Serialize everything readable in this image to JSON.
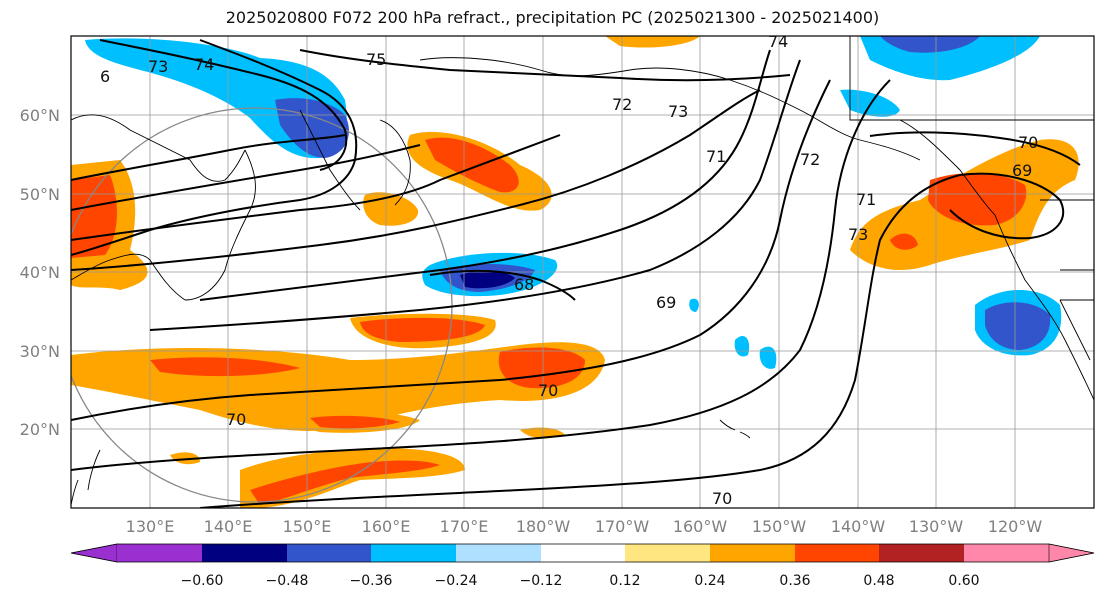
{
  "title": "2025020800 F072 200 hPa refract., precipitation PC (2025021300 - 2025021400)",
  "latitude_labels": [
    "60°N",
    "50°N",
    "40°N",
    "30°N",
    "20°N"
  ],
  "longitude_labels": [
    "130°E",
    "140°E",
    "150°E",
    "160°E",
    "170°E",
    "180°W",
    "170°W",
    "160°W",
    "150°W",
    "140°W",
    "130°W",
    "120°W"
  ],
  "contour_labels": [
    "75",
    "74",
    "74",
    "73",
    "73",
    "72",
    "71",
    "72",
    "71",
    "73",
    "70",
    "69",
    "68",
    "69",
    "70",
    "70",
    "70",
    "6"
  ],
  "colorbar": {
    "tick_labels": [
      "−0.60",
      "−0.48",
      "−0.36",
      "−0.24",
      "−0.12",
      "0.12",
      "0.24",
      "0.36",
      "0.48",
      "0.60"
    ],
    "colors": [
      "#9b30d0",
      "#000080",
      "#3355cc",
      "#00bfff",
      "#b0e0ff",
      "#ffffff",
      "#ffe680",
      "#ffa500",
      "#ff4500",
      "#b22222",
      "#ff88aa"
    ]
  },
  "colors": {
    "contour": "#000000",
    "coastline": "#000000",
    "grid": "#999999",
    "circle": "#888888"
  }
}
